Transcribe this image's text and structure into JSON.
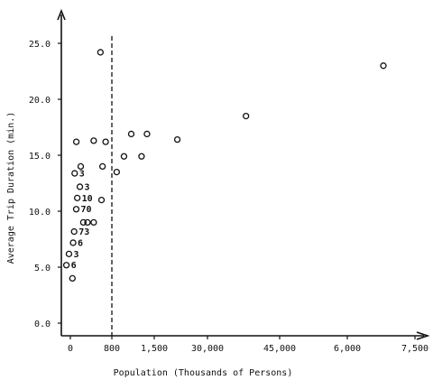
{
  "chart_data": {
    "type": "scatter",
    "title": "",
    "xlabel": "Population (Thousands of Persons)",
    "ylabel": "Average Trip Duration (min.)",
    "ylim": [
      0,
      25
    ],
    "y_ticks": [
      "0.0",
      "5.0",
      "10.0",
      "15.0",
      "20.0",
      "25.0"
    ],
    "x_ticks": [
      "0",
      "800",
      "1,500",
      "30,000",
      "45,000",
      "6,000",
      "7,500"
    ],
    "divider_population": 800,
    "grid": false,
    "points": [
      {
        "population": 115,
        "duration": 16.2
      },
      {
        "population": 450,
        "duration": 16.3
      },
      {
        "population": 580,
        "duration": 24.2
      },
      {
        "population": 620,
        "duration": 14.0
      },
      {
        "population": 680,
        "duration": 16.2
      },
      {
        "population": 880,
        "duration": 13.5
      },
      {
        "population": 600,
        "duration": 11.0
      },
      {
        "population": 200,
        "duration": 14.0
      },
      {
        "population": 250,
        "duration": 9.0
      },
      {
        "population": 330,
        "duration": 9.0
      },
      {
        "population": 450,
        "duration": 9.0
      },
      {
        "population": 40,
        "duration": 4.0
      },
      {
        "population": 1000,
        "duration": 14.9
      },
      {
        "population": 1120,
        "duration": 16.9
      },
      {
        "population": 1290,
        "duration": 14.9
      },
      {
        "population": 1380,
        "duration": 16.9
      },
      {
        "population": 2150,
        "duration": 16.4
      },
      {
        "population": 38000,
        "duration": 18.5
      },
      {
        "population": 6800,
        "duration": 23.0
      }
    ],
    "cluster_labels": [
      {
        "text": "3",
        "population": 170,
        "duration": 13.1
      },
      {
        "text": "3",
        "population": 270,
        "duration": 11.9
      },
      {
        "text": "10",
        "population": 220,
        "duration": 10.9
      },
      {
        "text": "70",
        "population": 200,
        "duration": 9.9
      },
      {
        "text": "73",
        "population": 160,
        "duration": 7.9
      },
      {
        "text": "6",
        "population": 140,
        "duration": 6.9
      },
      {
        "text": "3",
        "population": 60,
        "duration": 5.9
      },
      {
        "text": "6",
        "population": 10,
        "duration": 4.9
      }
    ]
  }
}
